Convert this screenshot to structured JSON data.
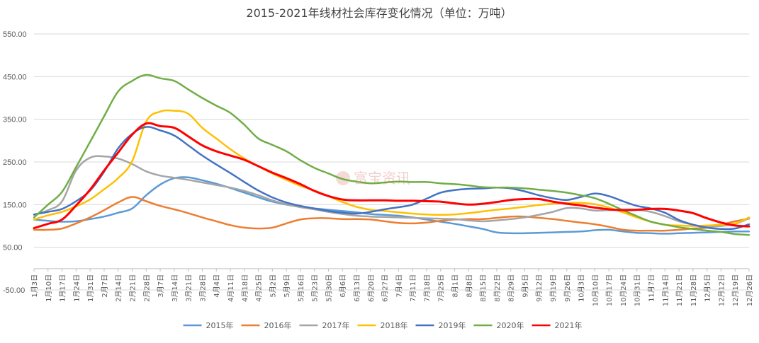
{
  "chart_data": {
    "type": "line",
    "title": "2015-2021年线材社会库存变化情况（单位：万吨）",
    "xlabel": "",
    "ylabel": "",
    "ylim": [
      -50,
      550
    ],
    "yticks": [
      -50,
      50,
      150,
      250,
      350,
      450,
      550
    ],
    "ytick_labels": [
      "-50.00",
      "50.00",
      "150.00",
      "250.00",
      "350.00",
      "450.00",
      "550.00"
    ],
    "grid": true,
    "legend_position": "bottom",
    "categories": [
      "1月3日",
      "1月10日",
      "1月17日",
      "1月24日",
      "1月31日",
      "2月7日",
      "2月14日",
      "2月21日",
      "2月28日",
      "3月7日",
      "3月14日",
      "3月21日",
      "3月28日",
      "4月4日",
      "4月11日",
      "4月18日",
      "4月25日",
      "5月2日",
      "5月9日",
      "5月16日",
      "5月23日",
      "5月30日",
      "6月6日",
      "6月13日",
      "6月20日",
      "6月27日",
      "7月4日",
      "7月11日",
      "7月18日",
      "7月25日",
      "8月1日",
      "8月8日",
      "8月15日",
      "8月22日",
      "8月29日",
      "9月5日",
      "9月12日",
      "9月19日",
      "9月26日",
      "10月3日",
      "10月10日",
      "10月17日",
      "10月24日",
      "10月31日",
      "11月7日",
      "11月14日",
      "11月21日",
      "11月28日",
      "12月5日",
      "12月12日",
      "12月19日",
      "12月26日"
    ],
    "series": [
      {
        "name": "2015年",
        "color": "#5B9BD5",
        "values": [
          115,
          112,
          110,
          111,
          116,
          122,
          131,
          141,
          172,
          197,
          212,
          214,
          207,
          199,
          189,
          178,
          167,
          157,
          150,
          145,
          141,
          138,
          135,
          132,
          128,
          126,
          124,
          120,
          115,
          110,
          105,
          99,
          93,
          85,
          83,
          83,
          84,
          85,
          86,
          87,
          90,
          91,
          87,
          84,
          83,
          82,
          83,
          84,
          85,
          86,
          87,
          87
        ]
      },
      {
        "name": "2016年",
        "color": "#ED7D31",
        "values": [
          91,
          91,
          94,
          106,
          120,
          137,
          155,
          168,
          158,
          147,
          139,
          130,
          120,
          111,
          102,
          96,
          94,
          96,
          106,
          115,
          118,
          118,
          116,
          116,
          115,
          111,
          107,
          106,
          108,
          112,
          115,
          116,
          116,
          119,
          122,
          122,
          119,
          116,
          112,
          108,
          104,
          98,
          91,
          89,
          89,
          89,
          91,
          94,
          96,
          103,
          111,
          117
        ]
      },
      {
        "name": "2017年",
        "color": "#A5A5A5",
        "values": [
          126,
          137,
          158,
          230,
          260,
          263,
          258,
          245,
          228,
          218,
          213,
          208,
          202,
          196,
          190,
          182,
          172,
          160,
          151,
          144,
          139,
          133,
          128,
          124,
          122,
          121,
          120,
          119,
          118,
          117,
          116,
          113,
          111,
          113,
          116,
          120,
          126,
          133,
          142,
          141,
          136,
          137,
          139,
          138,
          133,
          123,
          111,
          103,
          98,
          100,
          105,
          118
        ]
      },
      {
        "name": "2018年",
        "color": "#FFC000",
        "values": [
          115,
          125,
          133,
          146,
          162,
          186,
          212,
          252,
          345,
          368,
          370,
          363,
          330,
          305,
          280,
          258,
          240,
          223,
          208,
          194,
          183,
          170,
          156,
          145,
          138,
          135,
          132,
          129,
          127,
          126,
          127,
          130,
          134,
          138,
          141,
          145,
          149,
          152,
          154,
          154,
          151,
          143,
          132,
          120,
          110,
          103,
          101,
          100,
          101,
          103,
          106,
          120
        ]
      },
      {
        "name": "2019年",
        "color": "#4472C4",
        "values": [
          127,
          133,
          140,
          158,
          183,
          227,
          282,
          316,
          332,
          324,
          312,
          289,
          265,
          244,
          224,
          203,
          183,
          167,
          155,
          147,
          141,
          135,
          131,
          129,
          133,
          139,
          144,
          150,
          164,
          178,
          184,
          187,
          188,
          190,
          188,
          181,
          172,
          165,
          161,
          168,
          176,
          170,
          158,
          147,
          141,
          131,
          114,
          103,
          96,
          93,
          94,
          104
        ]
      },
      {
        "name": "2020年",
        "color": "#70AD47",
        "values": [
          120,
          150,
          180,
          238,
          297,
          357,
          415,
          440,
          454,
          446,
          440,
          420,
          400,
          382,
          365,
          337,
          305,
          290,
          275,
          254,
          236,
          223,
          210,
          204,
          200,
          202,
          204,
          203,
          203,
          200,
          198,
          195,
          191,
          190,
          190,
          188,
          185,
          182,
          178,
          172,
          165,
          152,
          137,
          123,
          110,
          103,
          97,
          93,
          89,
          86,
          81,
          79
        ]
      },
      {
        "name": "2021年",
        "color": "#FF0000",
        "values": [
          95,
          105,
          115,
          148,
          185,
          230,
          272,
          314,
          340,
          334,
          330,
          310,
          289,
          275,
          265,
          255,
          240,
          225,
          212,
          198,
          182,
          170,
          162,
          160,
          160,
          160,
          159,
          159,
          158,
          157,
          153,
          150,
          152,
          156,
          161,
          163,
          163,
          157,
          152,
          148,
          143,
          139,
          137,
          138,
          140,
          140,
          136,
          130,
          118,
          108,
          101,
          99
        ]
      }
    ]
  }
}
